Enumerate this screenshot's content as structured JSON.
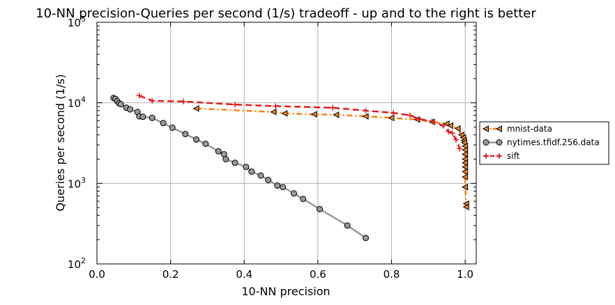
{
  "chart_data": {
    "type": "line",
    "title": "10-NN precision-Queries per second (1/s) tradeoff - up and to the right is better",
    "xlabel": "10-NN precision",
    "ylabel": "Queries per second (1/s)",
    "xlim": [
      0.0,
      1.03
    ],
    "ylim": [
      100,
      100000
    ],
    "yscale": "log",
    "grid": true,
    "legend": "right",
    "xticks": [
      "0.0",
      "0.2",
      "0.4",
      "0.6",
      "0.8",
      "1.0"
    ],
    "xtick_values": [
      0.0,
      0.2,
      0.4,
      0.6,
      0.8,
      1.0
    ],
    "yticks": [
      {
        "base": "10",
        "exp": "2",
        "value": 100
      },
      {
        "base": "10",
        "exp": "3",
        "value": 1000
      },
      {
        "base": "10",
        "exp": "4",
        "value": 10000
      },
      {
        "base": "10",
        "exp": "5",
        "value": 100000
      }
    ],
    "series": [
      {
        "name": "mnist-data",
        "color": "#ff7f0e",
        "marker": "triangle-left",
        "marker_fill": "#e8822a",
        "dash": "dashdot",
        "x": [
          0.27,
          0.48,
          0.51,
          0.59,
          0.65,
          0.73,
          0.8,
          0.87,
          0.91,
          0.95,
          0.96,
          0.98,
          0.99,
          0.995,
          0.997,
          0.998,
          1.0,
          1.0,
          1.0,
          1.0,
          1.0,
          1.0,
          1.0,
          1.0,
          1.0,
          1.003,
          1.003
        ],
        "y": [
          8500,
          7700,
          7400,
          7200,
          7100,
          6800,
          6500,
          6200,
          5800,
          5500,
          5200,
          4800,
          4000,
          3700,
          3400,
          3200,
          2900,
          2600,
          2300,
          2000,
          1800,
          1600,
          1400,
          1200,
          900,
          560,
          510
        ]
      },
      {
        "name": "nytimes.tfidf.256.data",
        "color": "#999999",
        "marker": "circle",
        "marker_fill": "#999999",
        "dash": "solid",
        "x": [
          0.045,
          0.05,
          0.055,
          0.06,
          0.065,
          0.08,
          0.09,
          0.11,
          0.115,
          0.125,
          0.15,
          0.18,
          0.205,
          0.24,
          0.27,
          0.295,
          0.33,
          0.345,
          0.35,
          0.375,
          0.405,
          0.42,
          0.445,
          0.465,
          0.49,
          0.505,
          0.535,
          0.56,
          0.605,
          0.68,
          0.73
        ],
        "y": [
          11500,
          11200,
          10500,
          9900,
          9600,
          8700,
          8300,
          7700,
          6800,
          6700,
          6500,
          5600,
          4900,
          4100,
          3500,
          3100,
          2500,
          2300,
          2000,
          1800,
          1600,
          1400,
          1250,
          1100,
          940,
          900,
          750,
          640,
          480,
          300,
          210
        ]
      },
      {
        "name": "sift",
        "color": "#e41a1c",
        "marker": "plus",
        "marker_fill": "#e41a1c",
        "dash": "dashed",
        "x": [
          0.115,
          0.15,
          0.235,
          0.375,
          0.485,
          0.64,
          0.73,
          0.805,
          0.85,
          0.875,
          0.91,
          0.94,
          0.955,
          0.965,
          0.975,
          0.985
        ],
        "y": [
          12300,
          10600,
          10400,
          9500,
          9100,
          8700,
          8000,
          7500,
          7000,
          6300,
          5900,
          5200,
          4400,
          4200,
          3500,
          2700
        ]
      }
    ]
  }
}
